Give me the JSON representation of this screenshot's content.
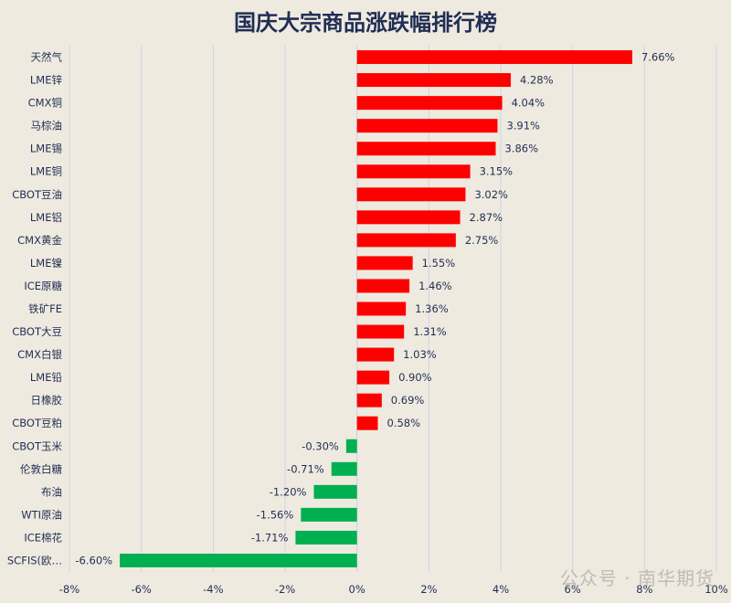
{
  "chart_data": {
    "type": "bar",
    "orientation": "horizontal",
    "title": "国庆大宗商品涨跌幅排行榜",
    "categories": [
      "天然气",
      "LME锌",
      "CMX铜",
      "马棕油",
      "LME锡",
      "LME铜",
      "CBOT豆油",
      "LME铝",
      "CMX黄金",
      "LME镍",
      "ICE原糖",
      "铁矿FE",
      "CBOT大豆",
      "CMX白银",
      "LME铅",
      "日橡胶",
      "CBOT豆粕",
      "CBOT玉米",
      "伦敦白糖",
      "布油",
      "WTI原油",
      "ICE棉花",
      "SCFIS(欧…"
    ],
    "values": [
      7.66,
      4.28,
      4.04,
      3.91,
      3.86,
      3.15,
      3.02,
      2.87,
      2.75,
      1.55,
      1.46,
      1.36,
      1.31,
      1.03,
      0.9,
      0.69,
      0.58,
      -0.3,
      -0.71,
      -1.2,
      -1.56,
      -1.71,
      -6.6
    ],
    "value_labels": [
      "7.66%",
      "4.28%",
      "4.04%",
      "3.91%",
      "3.86%",
      "3.15%",
      "3.02%",
      "2.87%",
      "2.75%",
      "1.55%",
      "1.46%",
      "1.36%",
      "1.31%",
      "1.03%",
      "0.90%",
      "0.69%",
      "0.58%",
      "-0.30%",
      "-0.71%",
      "-1.20%",
      "-1.56%",
      "-1.71%",
      "-6.60%"
    ],
    "xlim": [
      -8,
      10
    ],
    "xticks": [
      -8,
      -6,
      -4,
      -2,
      0,
      2,
      4,
      6,
      8,
      10
    ],
    "xtick_labels": [
      "-8%",
      "-6%",
      "-4%",
      "-2%",
      "0%",
      "2%",
      "4%",
      "6%",
      "8%",
      "10%"
    ],
    "grid": "vertical",
    "colors": {
      "positive": "#ff0000",
      "negative": "#00b050"
    }
  },
  "watermark": "公众号 · 南华期货"
}
